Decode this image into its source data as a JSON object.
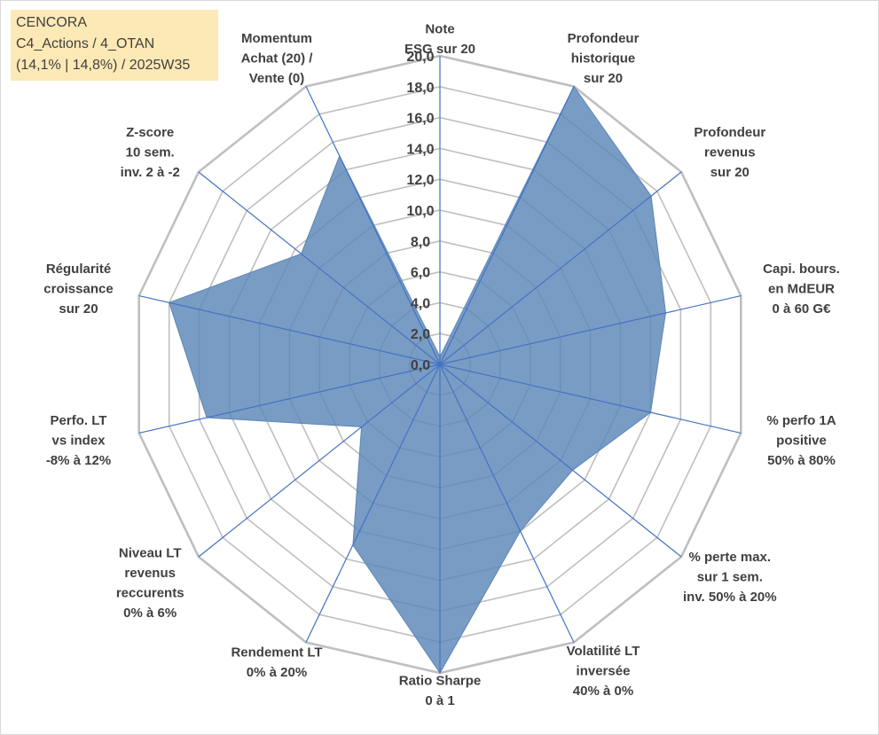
{
  "title_box": {
    "line1": "CENCORA",
    "line2": "C4_Actions / 4_OTAN",
    "line3": "(14,1% | 14,8%) / 2025W35"
  },
  "colors": {
    "fill": "#5b86b7",
    "spoke": "#4472c4",
    "ring": "#bfbfbf",
    "text": "#404040",
    "title_bg": "#fde9b5"
  },
  "chart_data": {
    "type": "radar",
    "rmin": 0,
    "rmax": 20,
    "tick_step": 2,
    "ticks": [
      "0,0",
      "2,0",
      "4,0",
      "6,0",
      "8,0",
      "10,0",
      "12,0",
      "14,0",
      "16,0",
      "18,0",
      "20,0"
    ],
    "grid": true,
    "axes": [
      {
        "label": [
          "Note",
          "ESG sur 20"
        ],
        "value": 0.5
      },
      {
        "label": [
          "Profondeur",
          "historique",
          "sur 20"
        ],
        "value": 20
      },
      {
        "label": [
          "Profondeur",
          "revenus",
          "sur 20"
        ],
        "value": 17.5
      },
      {
        "label": [
          "Capi. bours.",
          "en MdEUR",
          "0 à 60 G€"
        ],
        "value": 15
      },
      {
        "label": [
          "% perfo 1A",
          "positive",
          "50% à 80%"
        ],
        "value": 14
      },
      {
        "label": [
          "% perte max.",
          "sur 1 sem.",
          "inv. 50% à 20%"
        ],
        "value": 11
      },
      {
        "label": [
          "Volatilité LT",
          "inversée",
          "40% à 0%"
        ],
        "value": 12
      },
      {
        "label": [
          "Ratio Sharpe",
          "0 à 1"
        ],
        "value": 20
      },
      {
        "label": [
          "Rendement LT",
          "0% à 20%"
        ],
        "value": 13
      },
      {
        "label": [
          "Niveau LT",
          "revenus",
          "reccurents",
          "0% à 6%"
        ],
        "value": 6.5
      },
      {
        "label": [
          "Perfo. LT",
          "vs index",
          "-8% à 12%"
        ],
        "value": 15.5
      },
      {
        "label": [
          "Régularité",
          "croissance",
          "sur 20"
        ],
        "value": 18
      },
      {
        "label": [
          "Z-score",
          "10 sem.",
          "inv. 2 à -2"
        ],
        "value": 11.5
      },
      {
        "label": [
          "Momentum",
          "Achat (20) /",
          "Vente (0)"
        ],
        "value": 15
      }
    ]
  }
}
